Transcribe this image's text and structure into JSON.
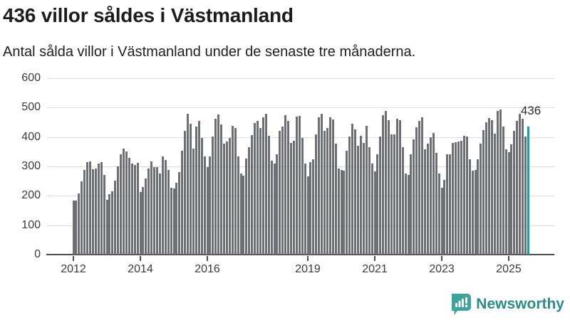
{
  "page": {
    "title": "436 villor såldes i Västmanland",
    "subtitle": "Antal sålda villor i Västmanland under de senaste tre månaderna."
  },
  "chart_data": {
    "type": "bar",
    "title": "436 villor såldes i Västmanland",
    "subtitle": "Antal sålda villor i Västmanland under de senaste tre månaderna.",
    "x_start": "2012-01",
    "x_end": "2025-08",
    "x_unit": "month",
    "ylim": [
      0,
      600
    ],
    "yticks": [
      0,
      100,
      200,
      300,
      400,
      500,
      600
    ],
    "xtick_years": [
      2012,
      2014,
      2016,
      2019,
      2021,
      2023,
      2025
    ],
    "grid": "horizontal",
    "bar_color": "#6e6e76",
    "highlight_color": "#0ca59e",
    "highlight_last_bar": true,
    "last_value_label": "436",
    "values": [
      185,
      185,
      207,
      250,
      288,
      314,
      317,
      290,
      292,
      310,
      315,
      270,
      186,
      205,
      215,
      252,
      300,
      340,
      360,
      352,
      330,
      310,
      305,
      312,
      214,
      230,
      260,
      293,
      318,
      298,
      297,
      277,
      335,
      322,
      289,
      228,
      224,
      244,
      280,
      353,
      421,
      480,
      446,
      361,
      435,
      455,
      397,
      333,
      298,
      333,
      401,
      462,
      476,
      442,
      377,
      385,
      397,
      439,
      430,
      333,
      277,
      268,
      326,
      365,
      407,
      448,
      455,
      431,
      466,
      480,
      405,
      319,
      309,
      341,
      420,
      435,
      474,
      455,
      381,
      387,
      470,
      472,
      397,
      309,
      267,
      315,
      323,
      410,
      466,
      480,
      422,
      430,
      466,
      460,
      377,
      293,
      288,
      285,
      353,
      401,
      446,
      426,
      369,
      405,
      380,
      439,
      365,
      309,
      283,
      342,
      401,
      474,
      488,
      458,
      410,
      409,
      462,
      458,
      365,
      277,
      272,
      341,
      391,
      434,
      454,
      466,
      357,
      377,
      400,
      414,
      347,
      277,
      228,
      254,
      341,
      340,
      381,
      383,
      385,
      388,
      404,
      401,
      325,
      286,
      288,
      325,
      377,
      423,
      450,
      464,
      458,
      411,
      489,
      493,
      436,
      358,
      348,
      376,
      422,
      455,
      479,
      462,
      402,
      436
    ]
  },
  "branding": {
    "logo_text": "Newsworthy",
    "logo_text_color": "#2e8c88",
    "logo_icon_color": "#3da49d",
    "logo_icon": "bar-chart-speech-bubble-icon"
  }
}
